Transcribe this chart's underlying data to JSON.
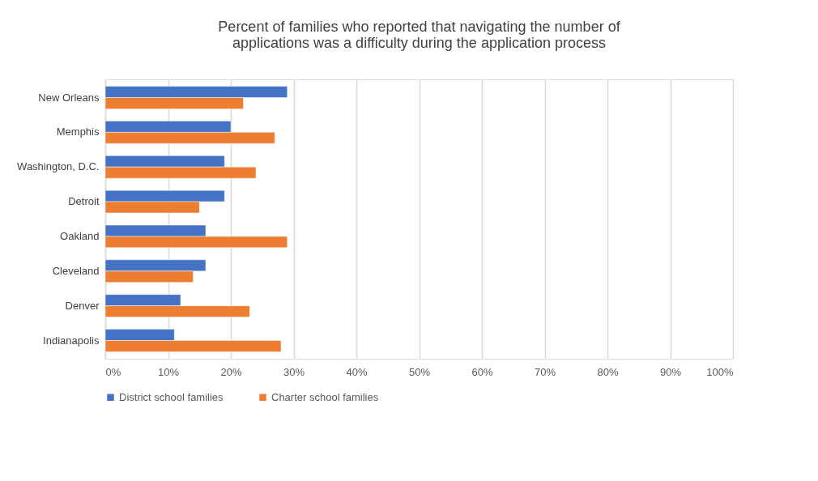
{
  "chart_data": {
    "type": "bar",
    "orientation": "horizontal",
    "title": [
      "Percent of families who reported that navigating the number of",
      "applications was a difficulty during the application process"
    ],
    "categories": [
      "New Orleans",
      "Memphis",
      "Washington, D.C.",
      "Detroit",
      "Oakland",
      "Cleveland",
      "Denver",
      "Indianapolis"
    ],
    "series": [
      {
        "name": "District school families",
        "color": "#4472c4",
        "values": [
          29,
          20,
          19,
          19,
          16,
          16,
          12,
          11
        ]
      },
      {
        "name": "Charter school families",
        "color": "#ed7d31",
        "values": [
          22,
          27,
          24,
          15,
          29,
          14,
          23,
          28
        ]
      }
    ],
    "xlim": [
      0,
      100
    ],
    "xticks": [
      {
        "value": 0,
        "label": "0%"
      },
      {
        "value": 10,
        "label": "10%"
      },
      {
        "value": 20,
        "label": "20%"
      },
      {
        "value": 30,
        "label": "30%"
      },
      {
        "value": 40,
        "label": "40%"
      },
      {
        "value": 50,
        "label": "50%"
      },
      {
        "value": 60,
        "label": "60%"
      },
      {
        "value": 70,
        "label": "70%"
      },
      {
        "value": 80,
        "label": "80%"
      },
      {
        "value": 90,
        "label": "90%"
      },
      {
        "value": 100,
        "label": "100%"
      }
    ],
    "grid": "x",
    "legend": "bottom"
  }
}
